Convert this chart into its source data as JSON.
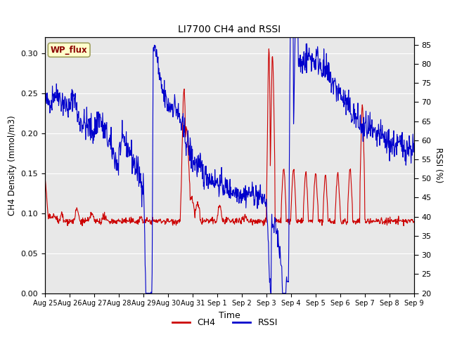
{
  "title": "LI7700 CH4 and RSSI",
  "xlabel": "Time",
  "ylabel_left": "CH4 Density (mmol/m3)",
  "ylabel_right": "RSSI (%)",
  "site_label": "WP_flux",
  "site_label_color": "#8B0000",
  "site_label_bg": "#FFFFCC",
  "site_label_border": "#A0A060",
  "ylim_left": [
    0.0,
    0.32
  ],
  "ylim_right": [
    20,
    87
  ],
  "yticks_left": [
    0.0,
    0.05,
    0.1,
    0.15,
    0.2,
    0.25,
    0.3
  ],
  "yticks_right": [
    20,
    25,
    30,
    35,
    40,
    45,
    50,
    55,
    60,
    65,
    70,
    75,
    80,
    85
  ],
  "ch4_color": "#CC0000",
  "rssi_color": "#0000CC",
  "bg_color": "#E8E8E8",
  "fig_bg": "#FFFFFF",
  "legend_ch4": "CH4",
  "legend_rssi": "RSSI",
  "x_tick_labels": [
    "Aug 25",
    "Aug 26",
    "Aug 27",
    "Aug 28",
    "Aug 29",
    "Aug 30",
    "Aug 31",
    "Sep 1",
    "Sep 2",
    "Sep 3",
    "Sep 4",
    "Sep 5",
    "Sep 6",
    "Sep 7",
    "Sep 8",
    "Sep 9"
  ],
  "n_points": 1000
}
